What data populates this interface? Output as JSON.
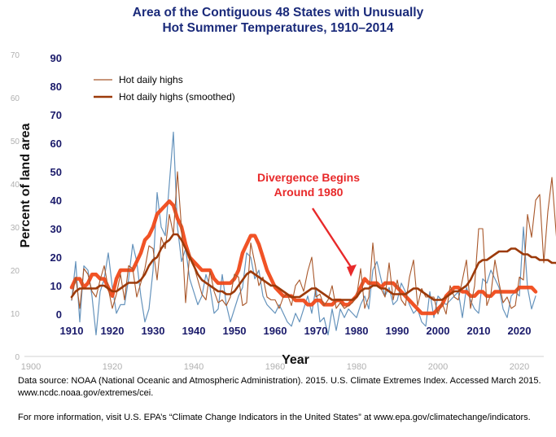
{
  "title_line1": "Area of the Contiguous 48 States with Unusually",
  "title_line2": "Hot Summer Temperatures, 1910–2014",
  "footnote_source": "Data source: NOAA (National Oceanic and Atmospheric Administration). 2015. U.S. Climate Extremes Index. Accessed March 2015.",
  "footnote_url": "www.ncdc.noaa.gov/extremes/cei.",
  "footnote_more": "For more information, visit U.S. EPA’s “Climate Change Indicators in the United States” at www.epa.gov/climatechange/indicators.",
  "colors": {
    "title": "#1a2a7a",
    "annual": "#a8572a",
    "smoothed": "#9c3a0a",
    "overlay_blue": "#4a80b0",
    "overlay_orange": "#f04a1a",
    "annotation": "#e8292a",
    "axis_text": "#1a1a6a",
    "bg_axis_text": "#b0b0b0"
  },
  "chart_data": [
    {
      "type": "line",
      "title": "Area of the Contiguous 48 States with Unusually Hot Summer Temperatures, 1910–2014",
      "xlabel": "Year",
      "ylabel": "Percent of land area",
      "xlim": [
        1910,
        2020
      ],
      "ylim": [
        0,
        90
      ],
      "xticks": [
        1910,
        1920,
        1930,
        1940,
        1950,
        1960,
        1970,
        1980,
        1990,
        2000,
        2010,
        2020
      ],
      "yticks": [
        0,
        10,
        20,
        30,
        40,
        50,
        60,
        70,
        80,
        90
      ],
      "legend_position": "top-left",
      "annotation": [
        "Divergence Begins",
        "Around 1980"
      ],
      "annotation_target": {
        "x": 1978,
        "y": 10
      },
      "x_start": 1910,
      "series": [
        {
          "name": "Hot daily highs",
          "style": "thin",
          "values": [
            5,
            13,
            2,
            16,
            14,
            8,
            6,
            12,
            17,
            9,
            2,
            7,
            14,
            5,
            17,
            16,
            6,
            11,
            16,
            24,
            23,
            12,
            27,
            23,
            35,
            28,
            50,
            30,
            4,
            21,
            17,
            12,
            7,
            5,
            15,
            8,
            4,
            5,
            3,
            6,
            14,
            13,
            3,
            4,
            25,
            18,
            10,
            13,
            6,
            5,
            5,
            2,
            6,
            7,
            3,
            10,
            12,
            8,
            15,
            20,
            6,
            7,
            3,
            5,
            10,
            2,
            4,
            2,
            3,
            4,
            6,
            16,
            2,
            6,
            25,
            10,
            9,
            6,
            18,
            5,
            12,
            5,
            3,
            13,
            19,
            3,
            9,
            6,
            6,
            6,
            0,
            4,
            0,
            10,
            6,
            5,
            12,
            19,
            2,
            10,
            30,
            30,
            3,
            7,
            19,
            11,
            4,
            6,
            2,
            3,
            13,
            12,
            35,
            27,
            40,
            42,
            18,
            36,
            48,
            29,
            12
          ]
        },
        {
          "name": "Hot daily highs (smoothed)",
          "style": "thick",
          "values": [
            6,
            8,
            9,
            9,
            9,
            9,
            9,
            10,
            10,
            9,
            8,
            8,
            9,
            10,
            11,
            11,
            11,
            12,
            14,
            17,
            19,
            20,
            23,
            25,
            26,
            28,
            28,
            26,
            23,
            20,
            17,
            14,
            12,
            11,
            10,
            9,
            8,
            8,
            7,
            7,
            8,
            10,
            12,
            14,
            15,
            14,
            13,
            12,
            11,
            10,
            10,
            9,
            8,
            7,
            6,
            6,
            6,
            7,
            8,
            9,
            9,
            8,
            7,
            6,
            5,
            5,
            5,
            5,
            5,
            5,
            6,
            8,
            9,
            9,
            10,
            10,
            9,
            9,
            8,
            7,
            7,
            7,
            7,
            8,
            9,
            9,
            8,
            7,
            6,
            5,
            5,
            5,
            6,
            7,
            8,
            8,
            9,
            10,
            12,
            15,
            18,
            19,
            19,
            20,
            21,
            22,
            22,
            22,
            23,
            23,
            22,
            21,
            21,
            20,
            20,
            19,
            19,
            19,
            18,
            18,
            17,
            17,
            17,
            16,
            16
          ]
        }
      ]
    },
    {
      "type": "line",
      "layer": "background",
      "xlim": [
        1900,
        2020
      ],
      "ylim": [
        0,
        70
      ],
      "xticks": [
        1900,
        1920,
        1940,
        1960,
        1980,
        2000,
        2020
      ],
      "yticks": [
        0,
        10,
        20,
        30,
        40,
        50,
        60,
        70
      ],
      "x_start": 1910,
      "series": [
        {
          "name": "blue",
          "values": [
            13,
            22,
            8,
            21,
            20,
            14,
            5,
            15,
            18,
            24,
            16,
            10,
            12,
            12,
            18,
            26,
            22,
            14,
            8,
            11,
            20,
            38,
            30,
            28,
            40,
            52,
            30,
            22,
            25,
            18,
            15,
            12,
            14,
            19,
            16,
            10,
            11,
            19,
            12,
            8,
            11,
            14,
            16,
            24,
            23,
            18,
            20,
            14,
            12,
            11,
            10,
            12,
            10,
            8,
            7,
            10,
            8,
            11,
            14,
            10,
            16,
            8,
            9,
            5,
            11,
            6,
            11,
            9,
            11,
            10,
            9,
            12,
            14,
            11,
            20,
            22,
            18,
            14,
            16,
            12,
            13,
            17,
            15,
            12,
            10,
            11,
            8,
            7,
            15,
            9,
            14,
            13,
            12,
            13,
            14,
            15,
            9,
            16,
            13,
            11,
            10,
            18,
            17,
            20,
            18,
            16,
            11,
            9,
            14,
            15,
            14,
            30,
            16,
            11,
            14
          ]
        },
        {
          "name": "orange",
          "values": [
            16,
            18,
            18,
            16,
            17,
            19,
            19,
            18,
            18,
            16,
            14,
            18,
            20,
            20,
            20,
            20,
            22,
            24,
            27,
            28,
            30,
            33,
            34,
            35,
            36,
            35,
            32,
            30,
            26,
            23,
            22,
            21,
            20,
            20,
            20,
            18,
            17,
            17,
            17,
            17,
            18,
            20,
            24,
            26,
            28,
            28,
            26,
            23,
            20,
            18,
            16,
            15,
            14,
            14,
            14,
            13,
            13,
            13,
            12,
            12,
            13,
            13,
            12,
            12,
            12,
            13,
            13,
            12,
            12,
            13,
            14,
            16,
            18,
            17,
            17,
            17,
            16,
            17,
            17,
            17,
            16,
            15,
            14,
            13,
            12,
            11,
            10,
            10,
            10,
            10,
            11,
            12,
            14,
            15,
            16,
            16,
            15,
            15,
            14,
            14,
            15,
            15,
            14,
            14,
            15,
            15,
            15,
            15,
            15,
            15,
            16,
            16,
            16,
            16,
            15
          ]
        }
      ]
    }
  ]
}
